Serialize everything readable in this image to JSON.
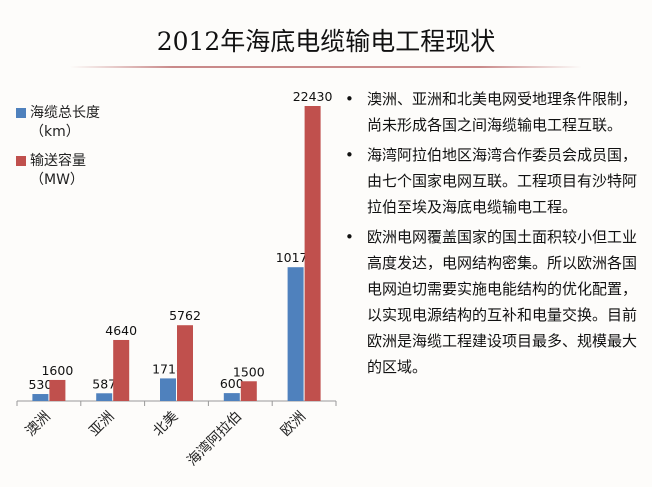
{
  "slide": {
    "title": "2012年海底电缆输电工程现状",
    "bullets": [
      "澳洲、亚洲和北美电网受地理条件限制，尚未形成各国之间海缆输电工程互联。",
      "海湾阿拉伯地区海湾合作委员会成员国，由七个国家电网互联。工程项目有沙特阿拉伯至埃及海底电缆输电工程。",
      "欧洲电网覆盖国家的国土面积较小但工业高度发达，电网结构密集。所以欧洲各国电网迫切需要实施电能结构的优化配置，以实现电源结构的互补和电量交换。目前欧洲是海缆工程建设项目最多、规模最大的区域。"
    ],
    "bullet_symbol": "•"
  },
  "chart_data": {
    "type": "bar",
    "categories": [
      "澳洲",
      "亚洲",
      "北美",
      "海湾阿拉伯",
      "欧洲"
    ],
    "series": [
      {
        "name": "海缆总长度（km）",
        "label_lines": [
          "海缆总长度",
          "（km）"
        ],
        "color": "#4f81bd",
        "values": [
          530,
          587,
          1718,
          600,
          10173
        ]
      },
      {
        "name": "输送容量（MW）",
        "label_lines": [
          "输送容量",
          "（MW）"
        ],
        "color": "#c0504d",
        "values": [
          1600,
          4640,
          5762,
          1500,
          22430
        ]
      }
    ],
    "ylim": [
      0,
      22430
    ],
    "grid": false,
    "legend_position": "top-left",
    "data_labels": true,
    "title": "",
    "xlabel": "",
    "ylabel": ""
  }
}
